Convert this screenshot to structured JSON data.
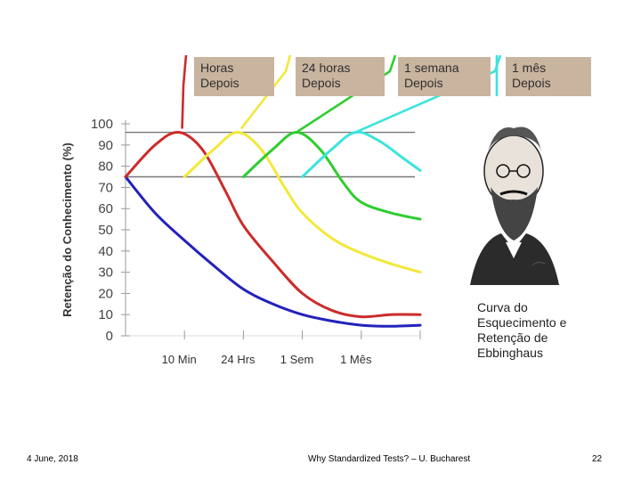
{
  "chart_data": {
    "type": "line",
    "title": "",
    "xlabel": "",
    "ylabel": "Retenção do Conhecimento (%)",
    "ylim": [
      0,
      100
    ],
    "yticks": [
      "0",
      "10",
      "20",
      "30",
      "40",
      "50",
      "60",
      "70",
      "80",
      "90",
      "100"
    ],
    "categories": [
      "10 Min",
      "24 Hrs",
      "1 Sem",
      "1 Mês"
    ],
    "reference_lines": [
      96,
      75
    ],
    "grid": false,
    "series": [
      {
        "color": "#2222bb",
        "points": [
          [
            0,
            75
          ],
          [
            0.5,
            58
          ],
          [
            1,
            45
          ],
          [
            1.5,
            33
          ],
          [
            2,
            22
          ],
          [
            2.5,
            15
          ],
          [
            3,
            10
          ],
          [
            3.5,
            7
          ],
          [
            4,
            5
          ],
          [
            4.5,
            4.5
          ],
          [
            5,
            5
          ]
        ]
      },
      {
        "color": "#cc2b2b",
        "points": [
          [
            0,
            75
          ],
          [
            0.5,
            90
          ],
          [
            0.9,
            96
          ],
          [
            1.3,
            88
          ],
          [
            1.7,
            68
          ],
          [
            2,
            52
          ],
          [
            2.5,
            35
          ],
          [
            3,
            20
          ],
          [
            3.5,
            12
          ],
          [
            4,
            9
          ],
          [
            4.5,
            10
          ],
          [
            5,
            10
          ]
        ]
      },
      {
        "color": "#f3e83a",
        "points": [
          [
            1,
            75
          ],
          [
            1.5,
            88
          ],
          [
            1.9,
            96
          ],
          [
            2.3,
            88
          ],
          [
            2.7,
            70
          ],
          [
            3,
            58
          ],
          [
            3.5,
            46
          ],
          [
            4,
            39
          ],
          [
            4.5,
            34
          ],
          [
            5,
            30
          ]
        ]
      },
      {
        "color": "#2fcd2f",
        "points": [
          [
            2,
            75
          ],
          [
            2.5,
            88
          ],
          [
            2.9,
            96
          ],
          [
            3.3,
            88
          ],
          [
            3.7,
            72
          ],
          [
            4,
            63
          ],
          [
            4.5,
            58
          ],
          [
            5,
            55
          ]
        ]
      },
      {
        "color": "#3de3dd",
        "points": [
          [
            3,
            75
          ],
          [
            3.5,
            88
          ],
          [
            3.9,
            96
          ],
          [
            4.3,
            92
          ],
          [
            4.7,
            84
          ],
          [
            5,
            78
          ]
        ]
      }
    ],
    "annotations": [
      {
        "text": "Horas\nDepois",
        "color": "#cc2b2b"
      },
      {
        "text": "24 horas\nDepois",
        "color": "#f3e83a"
      },
      {
        "text": "1 semana\nDepois",
        "color": "#2fcd2f"
      },
      {
        "text": "1 mês\nDepois",
        "color": "#3de3dd"
      }
    ]
  },
  "caption": "Curva do Esquecimento e Retenção de Ebbinghaus",
  "footer": {
    "date": "4 June, 2018",
    "center": "Why Standardized Tests? – U. Bucharest",
    "page": "22"
  },
  "colors": {
    "box": "#c9b49f",
    "axis": "#999999",
    "refline": "#777777"
  },
  "icons": {
    "portrait": "ebbinghaus-portrait-engraving"
  }
}
